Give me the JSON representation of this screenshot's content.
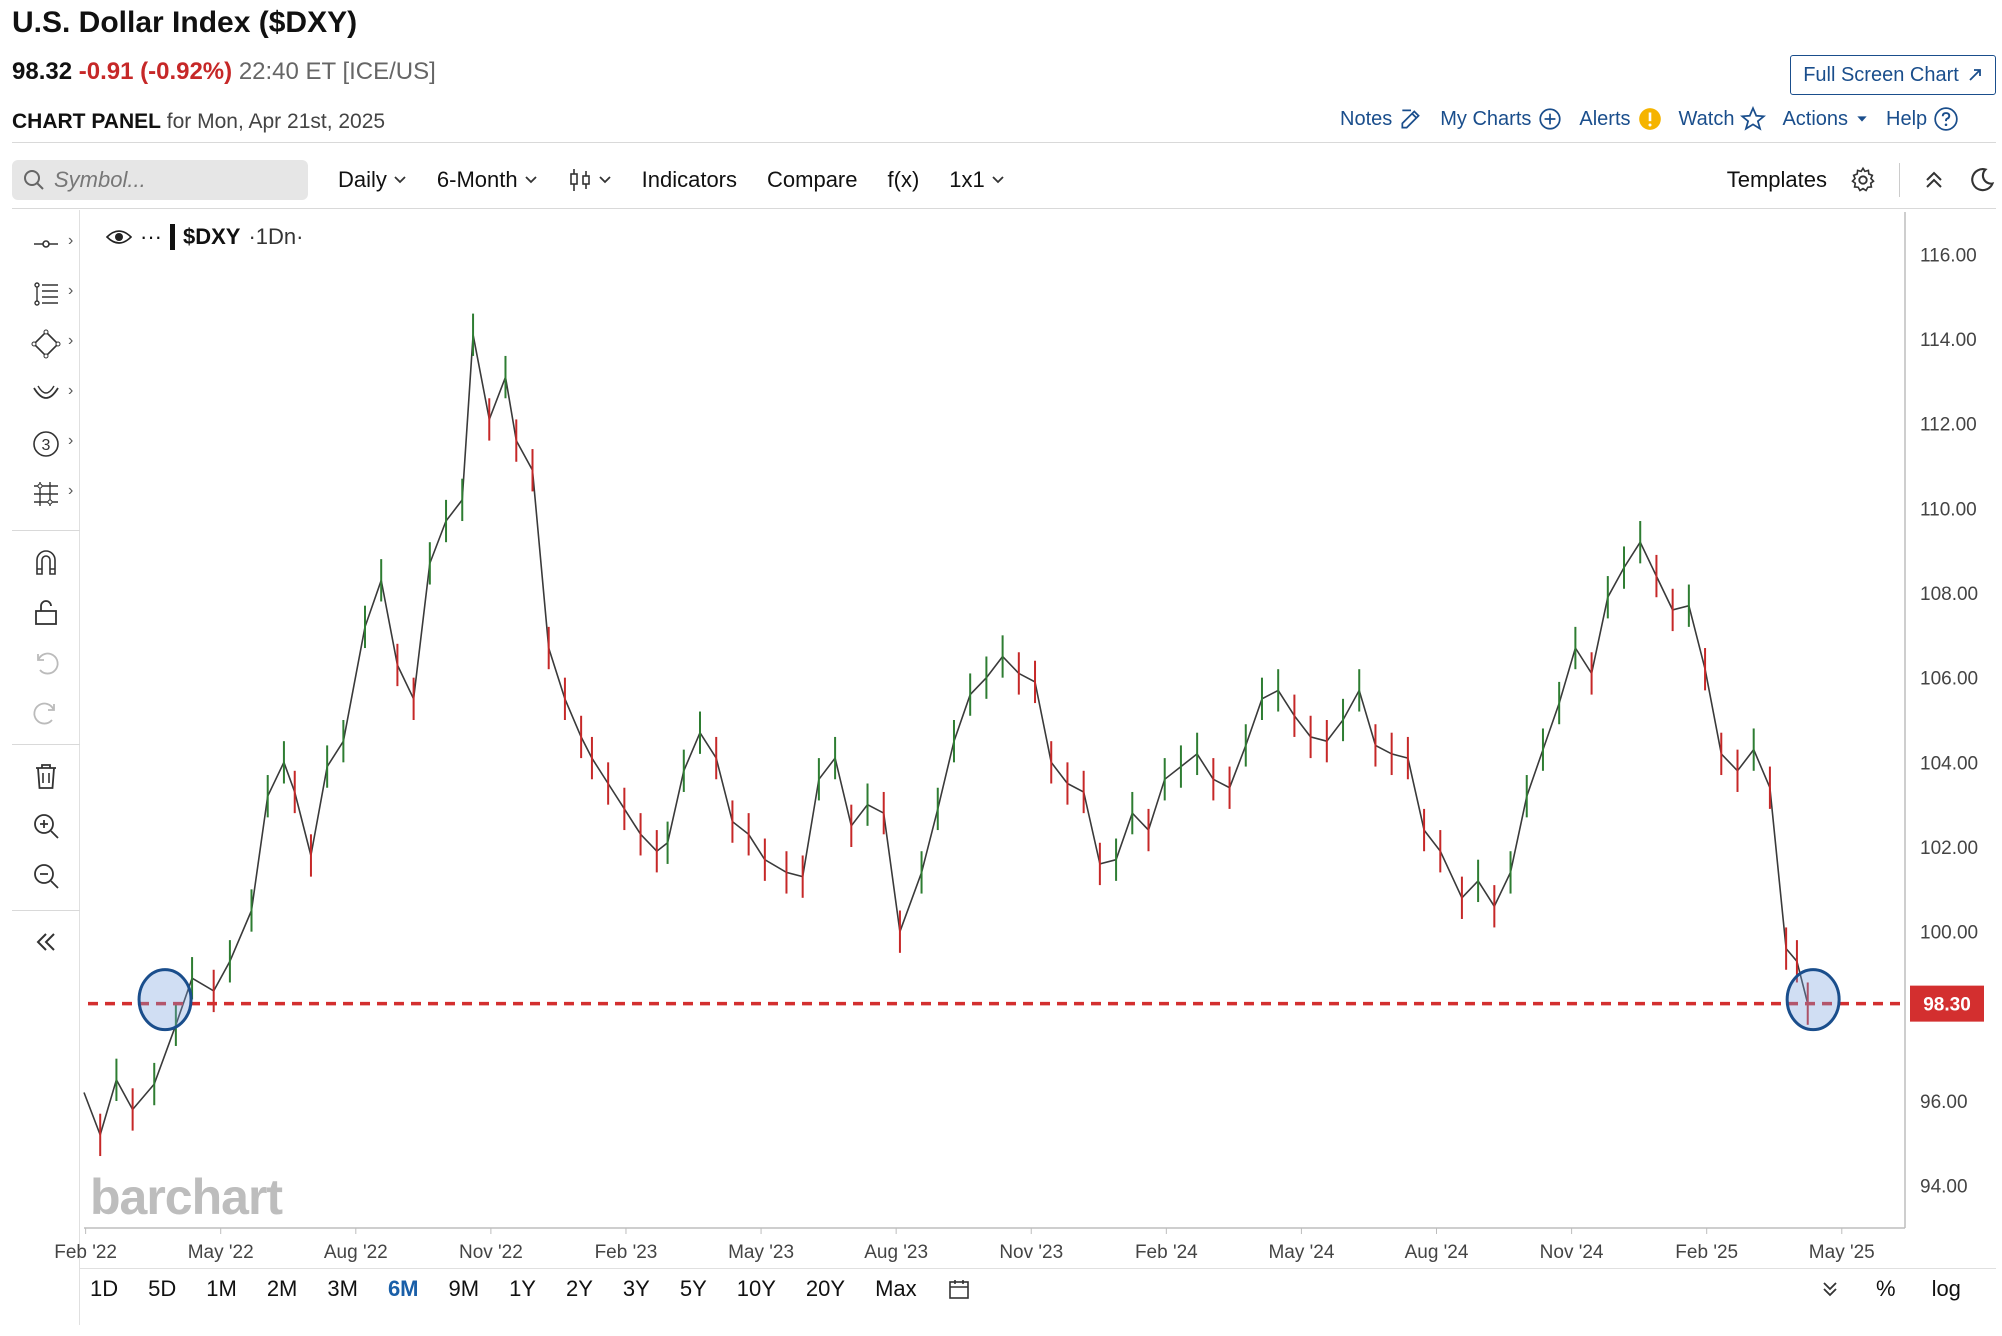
{
  "header": {
    "title": "U.S. Dollar Index ($DXY)",
    "last": "98.32",
    "change": "-0.91 (-0.92%)",
    "time": "22:40 ET [ICE/US]",
    "panel_label": "CHART PANEL",
    "panel_date": "for Mon, Apr 21st, 2025",
    "fullscreen_label": "Full Screen Chart"
  },
  "toplinks": [
    {
      "label": "Notes",
      "icon": "edit-icon"
    },
    {
      "label": "My Charts",
      "icon": "plus-circle-icon"
    },
    {
      "label": "Alerts",
      "icon": "alert-icon"
    },
    {
      "label": "Watch",
      "icon": "star-icon"
    },
    {
      "label": "Actions",
      "icon": "caret-down-icon"
    },
    {
      "label": "Help",
      "icon": "help-icon"
    }
  ],
  "toolbar": {
    "search_placeholder": "Symbol...",
    "interval": "Daily",
    "range": "6-Month",
    "indicators": "Indicators",
    "compare": "Compare",
    "fx": "f(x)",
    "layout": "1x1",
    "templates": "Templates"
  },
  "legend": {
    "symbol": "$DXY",
    "interval": "·1Dn·",
    "more": "···"
  },
  "bottom": {
    "periods": [
      "1D",
      "5D",
      "1M",
      "2M",
      "3M",
      "6M",
      "9M",
      "1Y",
      "2Y",
      "3Y",
      "5Y",
      "10Y",
      "20Y",
      "Max"
    ],
    "active": "6M",
    "percent": "%",
    "log": "log"
  },
  "watermark": "barchart",
  "colors": {
    "up": "#2e7d32",
    "down": "#c62828",
    "line": "#333333",
    "accent": "#1a4e8c",
    "price_tag": "#d32f2f",
    "circle": "#1a4e8c"
  },
  "chart_data": {
    "type": "line",
    "title": "",
    "xlabel": "",
    "ylabel": "",
    "ylim": [
      93,
      117
    ],
    "ytick_values": [
      94,
      96,
      100,
      102,
      104,
      106,
      108,
      110,
      112,
      114,
      116
    ],
    "ytick_labels": [
      "94.00",
      "96.00",
      "100.00",
      "102.00",
      "104.00",
      "106.00",
      "108.00",
      "110.00",
      "112.00",
      "114.00",
      "116.00"
    ],
    "xtick_labels": [
      "Feb '22",
      "May '22",
      "Aug '22",
      "Nov '22",
      "Feb '23",
      "May '23",
      "Aug '23",
      "Nov '23",
      "Feb '24",
      "May '24",
      "Aug '24",
      "Nov '24",
      "Feb '25",
      "May '25"
    ],
    "xlim_months": [
      2022.0,
      2025.37
    ],
    "series": [
      {
        "points": [
          [
            2022.0,
            96.2
          ],
          [
            2022.03,
            95.2
          ],
          [
            2022.06,
            96.5
          ],
          [
            2022.09,
            95.8
          ],
          [
            2022.13,
            96.4
          ],
          [
            2022.17,
            97.8
          ],
          [
            2022.2,
            98.9
          ],
          [
            2022.24,
            98.6
          ],
          [
            2022.27,
            99.3
          ],
          [
            2022.31,
            100.5
          ],
          [
            2022.34,
            103.2
          ],
          [
            2022.37,
            104.0
          ],
          [
            2022.39,
            103.3
          ],
          [
            2022.42,
            101.8
          ],
          [
            2022.45,
            103.9
          ],
          [
            2022.48,
            104.5
          ],
          [
            2022.52,
            107.2
          ],
          [
            2022.55,
            108.3
          ],
          [
            2022.58,
            106.3
          ],
          [
            2022.61,
            105.5
          ],
          [
            2022.64,
            108.7
          ],
          [
            2022.67,
            109.7
          ],
          [
            2022.7,
            110.2
          ],
          [
            2022.72,
            114.1
          ],
          [
            2022.75,
            112.1
          ],
          [
            2022.78,
            113.1
          ],
          [
            2022.8,
            111.6
          ],
          [
            2022.83,
            110.9
          ],
          [
            2022.86,
            106.7
          ],
          [
            2022.89,
            105.5
          ],
          [
            2022.92,
            104.6
          ],
          [
            2022.94,
            104.1
          ],
          [
            2022.97,
            103.5
          ],
          [
            2023.0,
            102.9
          ],
          [
            2023.03,
            102.3
          ],
          [
            2023.06,
            101.9
          ],
          [
            2023.08,
            102.1
          ],
          [
            2023.11,
            103.8
          ],
          [
            2023.14,
            104.7
          ],
          [
            2023.17,
            104.1
          ],
          [
            2023.2,
            102.6
          ],
          [
            2023.23,
            102.3
          ],
          [
            2023.26,
            101.7
          ],
          [
            2023.3,
            101.4
          ],
          [
            2023.33,
            101.3
          ],
          [
            2023.36,
            103.6
          ],
          [
            2023.39,
            104.1
          ],
          [
            2023.42,
            102.5
          ],
          [
            2023.45,
            103.0
          ],
          [
            2023.48,
            102.8
          ],
          [
            2023.51,
            100.0
          ],
          [
            2023.55,
            101.4
          ],
          [
            2023.58,
            102.9
          ],
          [
            2023.61,
            104.5
          ],
          [
            2023.64,
            105.6
          ],
          [
            2023.67,
            106.0
          ],
          [
            2023.7,
            106.5
          ],
          [
            2023.73,
            106.1
          ],
          [
            2023.76,
            105.9
          ],
          [
            2023.79,
            104.0
          ],
          [
            2023.82,
            103.5
          ],
          [
            2023.85,
            103.3
          ],
          [
            2023.88,
            101.6
          ],
          [
            2023.91,
            101.7
          ],
          [
            2023.94,
            102.8
          ],
          [
            2023.97,
            102.4
          ],
          [
            2024.0,
            103.6
          ],
          [
            2024.03,
            103.9
          ],
          [
            2024.06,
            104.2
          ],
          [
            2024.09,
            103.6
          ],
          [
            2024.12,
            103.4
          ],
          [
            2024.15,
            104.4
          ],
          [
            2024.18,
            105.5
          ],
          [
            2024.21,
            105.7
          ],
          [
            2024.24,
            105.1
          ],
          [
            2024.27,
            104.6
          ],
          [
            2024.3,
            104.5
          ],
          [
            2024.33,
            105.0
          ],
          [
            2024.36,
            105.7
          ],
          [
            2024.39,
            104.4
          ],
          [
            2024.42,
            104.2
          ],
          [
            2024.45,
            104.1
          ],
          [
            2024.48,
            102.4
          ],
          [
            2024.51,
            101.9
          ],
          [
            2024.55,
            100.8
          ],
          [
            2024.58,
            101.2
          ],
          [
            2024.61,
            100.6
          ],
          [
            2024.64,
            101.4
          ],
          [
            2024.67,
            103.2
          ],
          [
            2024.7,
            104.3
          ],
          [
            2024.73,
            105.4
          ],
          [
            2024.76,
            106.7
          ],
          [
            2024.79,
            106.1
          ],
          [
            2024.82,
            107.9
          ],
          [
            2024.85,
            108.6
          ],
          [
            2024.88,
            109.2
          ],
          [
            2024.91,
            108.4
          ],
          [
            2024.94,
            107.6
          ],
          [
            2024.97,
            107.7
          ],
          [
            2025.0,
            106.2
          ],
          [
            2025.03,
            104.2
          ],
          [
            2025.06,
            103.8
          ],
          [
            2025.09,
            104.3
          ],
          [
            2025.12,
            103.4
          ],
          [
            2025.15,
            99.6
          ],
          [
            2025.17,
            99.3
          ],
          [
            2025.19,
            98.3
          ]
        ]
      }
    ],
    "highlight_level": 98.3,
    "highlight_label": "98.30"
  }
}
